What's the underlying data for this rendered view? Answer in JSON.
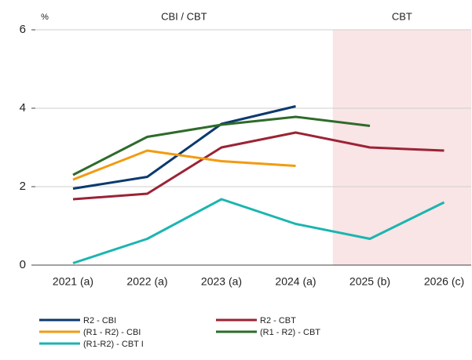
{
  "chart_data": {
    "type": "line",
    "y_unit": "%",
    "annotations": [
      "CBI / CBT",
      "CBT"
    ],
    "categories": [
      "2021 (a)",
      "2022 (a)",
      "2023 (a)",
      "2024 (a)",
      "2025 (b)",
      "2026 (c)"
    ],
    "series": [
      {
        "name": "R2 - CBI",
        "color": "#0b3a6e",
        "values": [
          1.95,
          2.25,
          3.6,
          4.05,
          null,
          null
        ]
      },
      {
        "name": "R2 - CBT",
        "color": "#9b2335",
        "values": [
          1.68,
          1.82,
          3.0,
          3.38,
          3.0,
          2.92
        ]
      },
      {
        "name": "(R1 - R2) - CBI",
        "color": "#f29b11",
        "values": [
          2.18,
          2.92,
          2.65,
          2.53,
          null,
          null
        ]
      },
      {
        "name": "(R1 - R2) - CBT",
        "color": "#2e6b2a",
        "values": [
          2.3,
          3.27,
          3.58,
          3.78,
          3.55,
          null
        ]
      },
      {
        "name": "(R1-R2) - CBT I",
        "color": "#1bb5b0",
        "values": [
          0.05,
          0.67,
          1.68,
          1.05,
          0.67,
          1.6
        ]
      }
    ],
    "ylim": [
      0,
      6
    ],
    "yticks": [
      0,
      2,
      4,
      6
    ],
    "grid": true,
    "highlight": {
      "from_category": 3.5,
      "color": "#f9e4e6"
    },
    "legend": "bottom"
  }
}
